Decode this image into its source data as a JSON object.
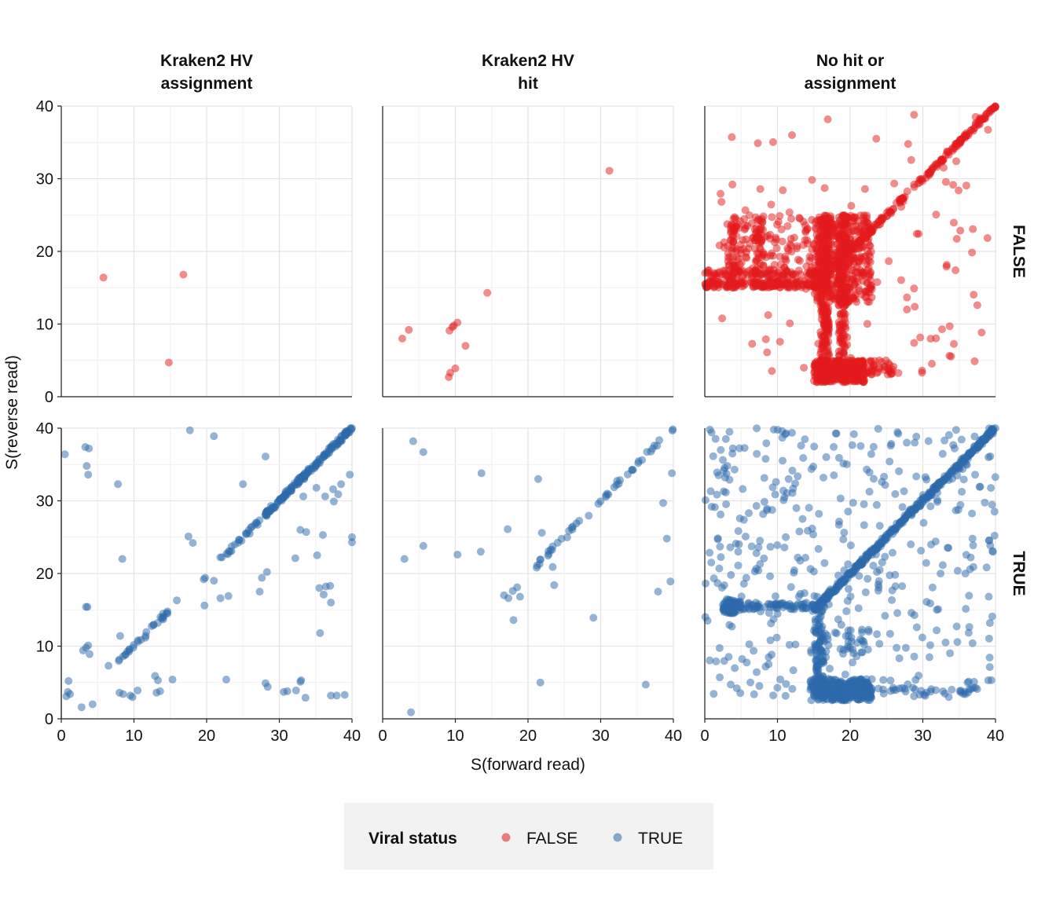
{
  "chart_data": {
    "type": "scatter",
    "facet_columns": [
      "Kraken2 HV\nassignment",
      "Kraken2 HV\nhit",
      "No hit or\nassignment"
    ],
    "facet_rows": [
      "FALSE",
      "TRUE"
    ],
    "xlabel": "S(forward read)",
    "ylabel": "S(reverse read)",
    "xlim": [
      0,
      40
    ],
    "ylim": [
      0,
      40
    ],
    "xticks": [
      0,
      10,
      20,
      30,
      40
    ],
    "yticks": [
      0,
      10,
      20,
      30,
      40
    ],
    "grid": true,
    "legend": {
      "title": "Viral status",
      "position": "bottom",
      "entries": [
        {
          "label": "FALSE",
          "color": "#E41A1C"
        },
        {
          "label": "TRUE",
          "color": "#2B6AAC"
        }
      ]
    },
    "panels": [
      {
        "col": 0,
        "row": 0,
        "status": "FALSE",
        "points": [
          [
            5.8,
            16.4
          ],
          [
            16.8,
            16.8
          ],
          [
            14.8,
            4.7
          ]
        ]
      },
      {
        "col": 1,
        "row": 0,
        "status": "FALSE",
        "points": [
          [
            31.2,
            31.1
          ],
          [
            14.4,
            14.3
          ],
          [
            11.4,
            7.0
          ],
          [
            2.7,
            8.0
          ],
          [
            3.6,
            9.2
          ],
          [
            9.2,
            9.1
          ],
          [
            9.6,
            9.6
          ],
          [
            10.3,
            10.2
          ],
          [
            9.8,
            9.8
          ],
          [
            9.3,
            3.3
          ],
          [
            9.1,
            2.7
          ],
          [
            10.0,
            3.9
          ]
        ]
      },
      {
        "col": 2,
        "row": 0,
        "status": "FALSE",
        "summary": [
          {
            "kind": "diag",
            "from": [
              15,
              15
            ],
            "to": [
              40,
              40
            ],
            "n": 220
          },
          {
            "kind": "hline",
            "y": 15.5,
            "x": [
              0,
              17
            ],
            "n": 180
          },
          {
            "kind": "hline",
            "y": 17.0,
            "x": [
              0,
              16
            ],
            "n": 80
          },
          {
            "kind": "vline",
            "x": 16.5,
            "y": [
              2,
              24
            ],
            "n": 260
          },
          {
            "kind": "vline",
            "x": 19.0,
            "y": [
              2,
              25
            ],
            "n": 200
          },
          {
            "kind": "box",
            "x": [
              15,
              22
            ],
            "y": [
              2,
              5
            ],
            "n": 320
          },
          {
            "kind": "box",
            "x": [
              15,
              23
            ],
            "y": [
              13,
              25
            ],
            "n": 420
          },
          {
            "kind": "box",
            "x": [
              3,
              15
            ],
            "y": [
              15,
              25
            ],
            "n": 160
          },
          {
            "kind": "vline",
            "x": 3.8,
            "y": [
              15,
              25
            ],
            "n": 40
          },
          {
            "kind": "vline",
            "x": 7.5,
            "y": [
              15,
              25
            ],
            "n": 40
          },
          {
            "kind": "box",
            "x": [
              22,
              26
            ],
            "y": [
              3,
              5
            ],
            "n": 40
          },
          {
            "kind": "scatter",
            "x": [
              2,
              39
            ],
            "y": [
              3,
              39
            ],
            "n": 90
          }
        ],
        "points": [
          [
            12.0,
            36.0
          ],
          [
            23.6,
            35.5
          ],
          [
            28.8,
            38.8
          ],
          [
            3.8,
            29.2
          ],
          [
            37.5,
            12.6
          ],
          [
            33.7,
            9.7
          ],
          [
            34.5,
            17.4
          ],
          [
            28.8,
            14.9
          ],
          [
            29.9,
            3.3
          ],
          [
            29.9,
            3.6
          ],
          [
            28.8,
            7.4
          ]
        ]
      },
      {
        "col": 0,
        "row": 1,
        "status": "TRUE",
        "summary": [
          {
            "kind": "diag",
            "from": [
              28,
              28
            ],
            "to": [
              40,
              40
            ],
            "n": 160
          },
          {
            "kind": "diag",
            "from": [
              22,
              22
            ],
            "to": [
              28,
              28
            ],
            "n": 25
          },
          {
            "kind": "diag",
            "from": [
              8,
              8
            ],
            "to": [
              15,
              15
            ],
            "n": 30
          }
        ],
        "points": [
          [
            0.5,
            36.4
          ],
          [
            3.3,
            37.4
          ],
          [
            3.8,
            37.2
          ],
          [
            3.5,
            34.8
          ],
          [
            3.7,
            33.6
          ],
          [
            7.8,
            32.3
          ],
          [
            8.4,
            22.0
          ],
          [
            17.7,
            39.7
          ],
          [
            21.0,
            38.9
          ],
          [
            28.1,
            36.1
          ],
          [
            25.0,
            32.3
          ],
          [
            17.5,
            25.1
          ],
          [
            18.1,
            24.2
          ],
          [
            19.6,
            19.2
          ],
          [
            19.8,
            19.4
          ],
          [
            15.9,
            16.3
          ],
          [
            19.7,
            15.6
          ],
          [
            23.0,
            16.9
          ],
          [
            27.3,
            17.5
          ],
          [
            27.6,
            19.4
          ],
          [
            28.3,
            20.2
          ],
          [
            3.6,
            15.4
          ],
          [
            3.4,
            15.4
          ],
          [
            3.0,
            9.4
          ],
          [
            3.4,
            9.8
          ],
          [
            3.7,
            10.1
          ],
          [
            3.9,
            8.9
          ],
          [
            6.5,
            7.3
          ],
          [
            8.1,
            11.4
          ],
          [
            8.0,
            3.6
          ],
          [
            8.5,
            3.4
          ],
          [
            9.5,
            3.2
          ],
          [
            9.8,
            3.0
          ],
          [
            10.5,
            3.9
          ],
          [
            12.9,
            5.9
          ],
          [
            13.3,
            5.3
          ],
          [
            13.1,
            3.6
          ],
          [
            13.6,
            3.8
          ],
          [
            15.3,
            5.4
          ],
          [
            1.0,
            5.2
          ],
          [
            1.2,
            3.4
          ],
          [
            0.7,
            3.1
          ],
          [
            0.9,
            3.7
          ],
          [
            2.8,
            1.6
          ],
          [
            4.3,
            2.0
          ],
          [
            22.7,
            5.4
          ],
          [
            28.1,
            4.9
          ],
          [
            28.4,
            4.4
          ],
          [
            30.6,
            3.7
          ],
          [
            31.1,
            3.8
          ],
          [
            32.3,
            3.9
          ],
          [
            33.0,
            5.3
          ],
          [
            32.9,
            5.1
          ],
          [
            33.6,
            2.9
          ],
          [
            37.1,
            3.2
          ],
          [
            37.9,
            3.2
          ],
          [
            39.0,
            3.3
          ],
          [
            34.0,
            34.4
          ],
          [
            33.3,
            30.6
          ],
          [
            35.1,
            31.8
          ],
          [
            36.3,
            30.6
          ],
          [
            37.4,
            31.6
          ],
          [
            38.5,
            32.3
          ],
          [
            39.7,
            33.6
          ],
          [
            40.0,
            25.0
          ],
          [
            40.0,
            24.3
          ],
          [
            36.0,
            25.3
          ],
          [
            32.9,
            26.0
          ],
          [
            33.7,
            25.7
          ],
          [
            35.2,
            22.5
          ],
          [
            38.1,
            30.9
          ],
          [
            37.5,
            29.9
          ],
          [
            32.2,
            22.1
          ],
          [
            35.5,
            18.0
          ],
          [
            36.4,
            18.2
          ],
          [
            37.0,
            18.3
          ],
          [
            36.1,
            17.1
          ],
          [
            37.1,
            16.0
          ],
          [
            35.6,
            11.8
          ],
          [
            21.0,
            19.0
          ],
          [
            21.9,
            16.6
          ]
        ]
      },
      {
        "col": 1,
        "row": 1,
        "status": "TRUE",
        "summary": [
          {
            "kind": "diag",
            "from": [
              21,
              21
            ],
            "to": [
              40,
              40
            ],
            "n": 45
          }
        ],
        "points": [
          [
            4.2,
            38.2
          ],
          [
            5.6,
            36.7
          ],
          [
            13.6,
            33.8
          ],
          [
            21.4,
            33.0
          ],
          [
            3.0,
            22.0
          ],
          [
            5.6,
            23.8
          ],
          [
            10.3,
            22.6
          ],
          [
            13.5,
            23.0
          ],
          [
            17.2,
            26.1
          ],
          [
            16.7,
            17.0
          ],
          [
            17.3,
            16.6
          ],
          [
            17.9,
            17.6
          ],
          [
            18.5,
            18.1
          ],
          [
            18.9,
            16.8
          ],
          [
            18.0,
            13.6
          ],
          [
            21.2,
            20.8
          ],
          [
            21.6,
            21.3
          ],
          [
            23.4,
            20.9
          ],
          [
            23.6,
            18.4
          ],
          [
            21.9,
            25.6
          ],
          [
            21.7,
            5.0
          ],
          [
            29.0,
            13.9
          ],
          [
            3.9,
            0.9
          ],
          [
            36.2,
            4.7
          ],
          [
            37.9,
            17.5
          ],
          [
            38.6,
            29.7
          ],
          [
            39.1,
            24.8
          ],
          [
            39.8,
            33.8
          ],
          [
            39.6,
            18.9
          ]
        ]
      },
      {
        "col": 2,
        "row": 1,
        "status": "TRUE",
        "summary": [
          {
            "kind": "diag",
            "from": [
              15,
              15
            ],
            "to": [
              40,
              40
            ],
            "n": 420
          },
          {
            "kind": "hline",
            "y": 15.5,
            "x": [
              3,
              15
            ],
            "n": 80
          },
          {
            "kind": "box",
            "x": [
              2.5,
              5
            ],
            "y": [
              14.5,
              16.5
            ],
            "n": 70
          },
          {
            "kind": "vline",
            "x": 15.8,
            "y": [
              3,
              16
            ],
            "n": 90
          },
          {
            "kind": "box",
            "x": [
              14.5,
              23
            ],
            "y": [
              2.5,
              5.5
            ],
            "n": 320
          },
          {
            "kind": "box",
            "x": [
              15,
              22
            ],
            "y": [
              8,
              13
            ],
            "n": 40
          },
          {
            "kind": "hline",
            "y": 3.8,
            "x": [
              23,
              40
            ],
            "n": 30
          },
          {
            "kind": "scatter",
            "x": [
              0,
              40
            ],
            "y": [
              3,
              40
            ],
            "n": 380
          }
        ],
        "points": [
          [
            0.7,
            39.8
          ],
          [
            2.9,
            38.5
          ],
          [
            3.4,
            39.5
          ],
          [
            9.5,
            39.8
          ],
          [
            11.2,
            39.3
          ],
          [
            2.2,
            37.0
          ],
          [
            3.8,
            36.5
          ],
          [
            3.1,
            34.8
          ],
          [
            4.1,
            34.3
          ],
          [
            1.9,
            33.5
          ],
          [
            2.8,
            33.2
          ],
          [
            3.4,
            32.9
          ],
          [
            9.8,
            32.6
          ],
          [
            2.6,
            31.3
          ],
          [
            10.8,
            31.4
          ],
          [
            7.1,
            29.3
          ],
          [
            12.6,
            29.0
          ],
          [
            1.8,
            24.7
          ],
          [
            2.1,
            23.7
          ],
          [
            3.5,
            23.6
          ],
          [
            4.6,
            23.0
          ],
          [
            7.4,
            23.6
          ],
          [
            7.1,
            22.8
          ],
          [
            0.9,
            21.5
          ],
          [
            4.6,
            21.1
          ],
          [
            7.6,
            21.3
          ],
          [
            3.6,
            19.8
          ],
          [
            5.7,
            19.4
          ]
        ]
      }
    ]
  }
}
